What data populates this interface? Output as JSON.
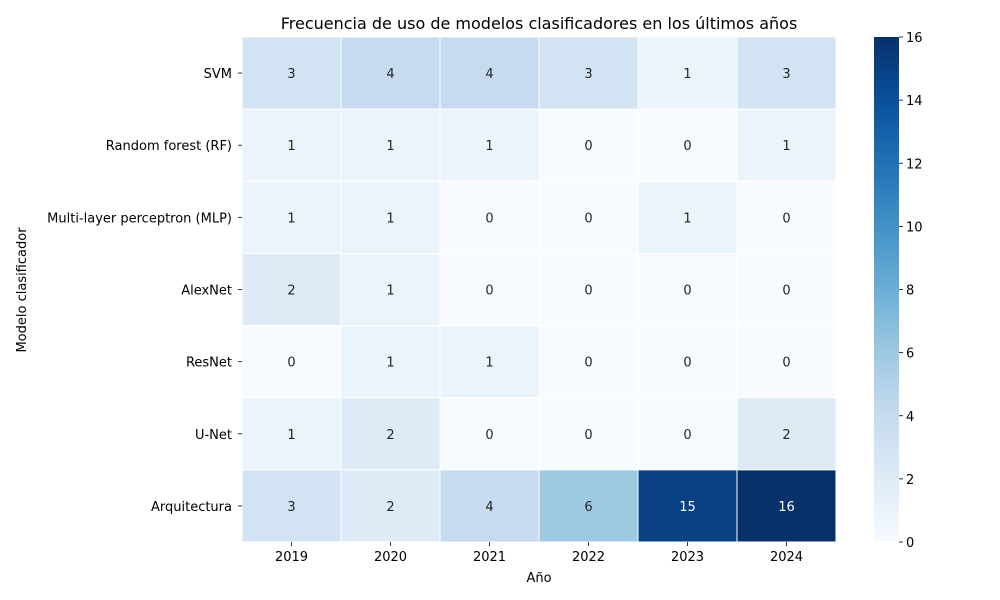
{
  "chart_data": {
    "type": "heatmap",
    "title": "Frecuencia de uso de modelos clasificadores en los últimos años",
    "xlabel": "Año",
    "ylabel": "Modelo clasificador",
    "x": [
      "2019",
      "2020",
      "2021",
      "2022",
      "2023",
      "2024"
    ],
    "y": [
      "SVM",
      "Random forest (RF)",
      "Multi-layer perceptron (MLP)",
      "AlexNet",
      "ResNet",
      "U-Net",
      "Arquitectura"
    ],
    "values": [
      [
        3,
        4,
        4,
        3,
        1,
        3
      ],
      [
        1,
        1,
        1,
        0,
        0,
        1
      ],
      [
        1,
        1,
        0,
        0,
        1,
        0
      ],
      [
        2,
        1,
        0,
        0,
        0,
        0
      ],
      [
        0,
        1,
        1,
        0,
        0,
        0
      ],
      [
        1,
        2,
        0,
        0,
        0,
        2
      ],
      [
        3,
        2,
        4,
        6,
        15,
        16
      ]
    ],
    "colorscale": "Blues",
    "vmin": 0,
    "vmax": 16,
    "colorbar_ticks": [
      0,
      2,
      4,
      6,
      8,
      10,
      12,
      14,
      16
    ],
    "annotated": true,
    "grid": false
  }
}
